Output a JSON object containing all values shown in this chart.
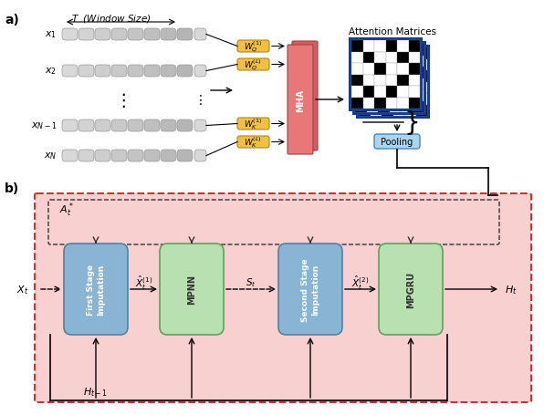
{
  "fig_width": 5.96,
  "fig_height": 4.56,
  "bg_color": "#ffffff",
  "part_a_label": "a)",
  "part_b_label": "b)",
  "panel_a": {
    "T_label": "T  (Window Size)",
    "x_labels": [
      "$x_1$",
      "$x_2$",
      "$x_{N-1}$",
      "$x_N$"
    ],
    "row_colors": [
      "#d0d0d0",
      "#e8e8e8"
    ],
    "mha_color": "#e87878",
    "wq_color": "#f0c040",
    "wk_color": "#f0c040",
    "mha_label": "MHA",
    "attention_label": "Attention Matrices",
    "pooling_label": "Pooling",
    "pooling_color": "#aad4f0"
  },
  "panel_b": {
    "bg_color": "#f8d0d0",
    "border_color": "#cc3333",
    "At_label": "$A_t^*$",
    "Xt_label": "$X_t$",
    "Ht1_label": "$H_{t-1}$",
    "Ht_label": "$H_t$",
    "first_stage_label": "First Stage\nImputation",
    "first_stage_color": "#8ab4d4",
    "mpnn_label": "MPNN",
    "mpnn_color": "#b8e0b0",
    "St_label": "$S_t$",
    "second_stage_label": "Second Stage\nImputation",
    "second_stage_color": "#8ab4d4",
    "mpgru_label": "MPGRU",
    "mpgru_color": "#b8e0b0",
    "xhat1_label": "$\\hat{X}_t^{(1)}$",
    "xhat2_label": "$\\hat{X}_t^{(2)}$"
  }
}
